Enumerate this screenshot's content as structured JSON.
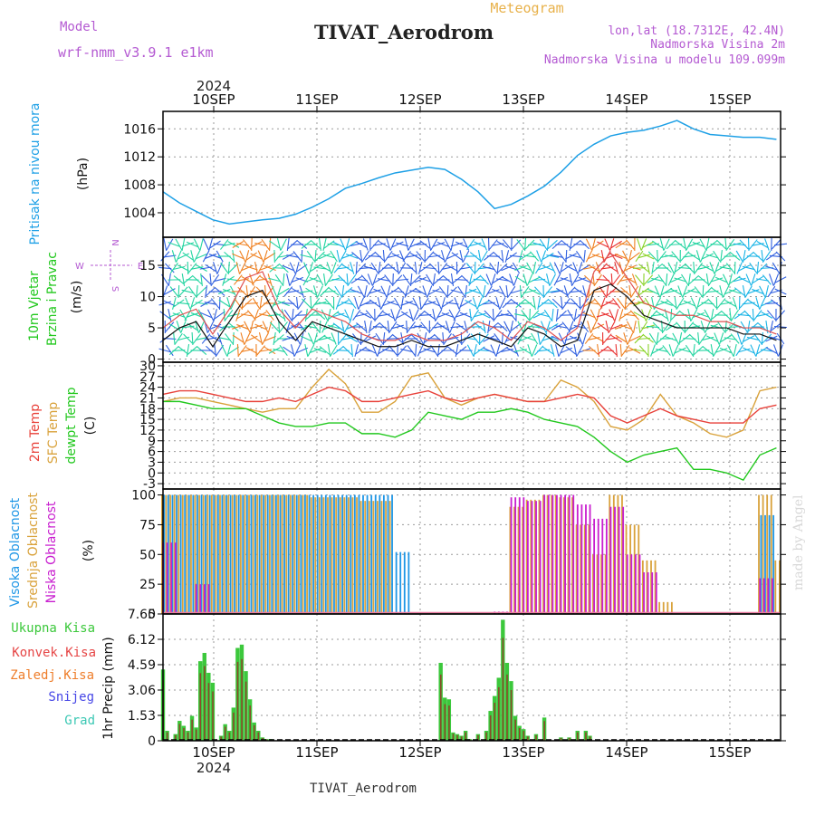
{
  "header": {
    "model_label": "Model",
    "model_name": "wrf-nmm_v3.9.1 e1km",
    "title": "TIVAT_Aerodrom",
    "subtitle": "Meteogram",
    "location_line": "lon,lat (18.7312E, 42.4N)",
    "elevation_line": "Nadmorska Visina 2m",
    "model_elevation_line": "Nadmorska Visina u modelu 109.099m",
    "footer_title": "TIVAT_Aerodrom",
    "watermark": "made by Angel"
  },
  "colors": {
    "pressure": "#1ea0e6",
    "temp2m": "#e8413a",
    "sfc_temp": "#d9a23b",
    "dewpoint": "#22c81e",
    "high_cloud": "#1e96e6",
    "mid_cloud": "#d9a23b",
    "low_cloud": "#c81ecf",
    "total_precip": "#3cc83c",
    "conv_precip": "#e64646",
    "strat_precip": "#ee7d2a",
    "snow": "#4646e6",
    "graupel": "#3cc8b4",
    "wind_label": "#22c81e",
    "compass": "#b45ad2"
  },
  "time_axis": {
    "year": "2024",
    "days": [
      "10SEP",
      "11SEP",
      "12SEP",
      "13SEP",
      "14SEP",
      "15SEP"
    ]
  },
  "chart_data": [
    {
      "type": "line",
      "id": "pressure",
      "ylabel_lines": [
        "Pritisak na nivou mora",
        "(hPa)"
      ],
      "ylim": [
        1000.5,
        1018.5
      ],
      "yticks": [
        1004,
        1008,
        1012,
        1016
      ],
      "grid": true,
      "x_hours": [
        0,
        4,
        8,
        12,
        16,
        20,
        24,
        28,
        32,
        36,
        40,
        44,
        48,
        52,
        56,
        60,
        64,
        68,
        72,
        76,
        80,
        84,
        88,
        92,
        96,
        100,
        104,
        108,
        112,
        116,
        120,
        124,
        128,
        132,
        136,
        140,
        144,
        148
      ],
      "series": [
        {
          "values": [
            1007.0,
            1005.4,
            1004.2,
            1003.0,
            1002.4,
            1002.7,
            1003.0,
            1003.2,
            1003.8,
            1004.8,
            1006.0,
            1007.5,
            1008.2,
            1009.0,
            1009.7,
            1010.1,
            1010.5,
            1010.2,
            1008.8,
            1007.0,
            1004.6,
            1005.2,
            1006.4,
            1007.8,
            1009.8,
            1012.2,
            1013.8,
            1015.0,
            1015.5,
            1015.8,
            1016.4,
            1017.2,
            1016.0,
            1015.2,
            1015.0,
            1014.8,
            1014.8,
            1014.5
          ]
        }
      ]
    },
    {
      "type": "line",
      "id": "wind",
      "ylabel_lines": [
        "10m Vjetar",
        "Brzina i Pravac",
        "(m/s)"
      ],
      "compass": {
        "north": "N",
        "south": "S",
        "west": "W",
        "east": "E"
      },
      "ylim": [
        -0.5,
        19.5
      ],
      "yticks": [
        0,
        5,
        10,
        15
      ],
      "grid": true,
      "x_hours": [
        0,
        4,
        8,
        12,
        16,
        20,
        24,
        28,
        32,
        36,
        40,
        44,
        48,
        52,
        56,
        60,
        64,
        68,
        72,
        76,
        80,
        84,
        88,
        92,
        96,
        100,
        104,
        108,
        112,
        116,
        120,
        124,
        128,
        132,
        136,
        140,
        144,
        148
      ],
      "series": [
        {
          "name": "speed",
          "values": [
            3,
            5,
            6,
            2,
            6,
            10,
            11,
            6,
            3,
            6,
            5,
            4,
            3,
            2,
            2,
            3,
            2,
            2,
            3,
            4,
            3,
            2,
            5,
            4,
            2,
            3,
            11,
            12,
            10,
            7,
            6,
            5,
            5,
            5,
            5,
            4,
            4,
            3
          ]
        },
        {
          "name": "gust",
          "values": [
            5,
            7,
            8,
            4,
            8,
            13,
            14,
            8,
            5,
            8,
            7,
            6,
            4,
            3,
            3,
            4,
            3,
            3,
            4,
            6,
            5,
            3,
            6,
            5,
            3,
            5,
            14,
            17,
            13,
            9,
            8,
            7,
            7,
            6,
            6,
            5,
            5,
            4
          ]
        }
      ]
    },
    {
      "type": "line",
      "id": "temperature",
      "ylabel_lines": [
        "2m Temp",
        "SFC Temp",
        "dewpt Temp",
        "(C)"
      ],
      "ylim": [
        -4.5,
        31
      ],
      "yticks": [
        -3,
        0,
        3,
        6,
        9,
        12,
        15,
        18,
        21,
        24,
        27,
        30
      ],
      "grid": true,
      "x_hours": [
        0,
        4,
        8,
        12,
        16,
        20,
        24,
        28,
        32,
        36,
        40,
        44,
        48,
        52,
        56,
        60,
        64,
        68,
        72,
        76,
        80,
        84,
        88,
        92,
        96,
        100,
        104,
        108,
        112,
        116,
        120,
        124,
        128,
        132,
        136,
        140,
        144,
        148
      ],
      "series": [
        {
          "name": "2m Temp",
          "values": [
            22,
            23,
            23,
            22,
            21,
            20,
            20,
            21,
            20,
            22,
            24,
            23,
            20,
            20,
            21,
            22,
            23,
            21,
            20,
            21,
            22,
            21,
            20,
            20,
            21,
            22,
            21,
            16,
            14,
            16,
            18,
            16,
            15,
            14,
            14,
            14,
            18,
            19
          ]
        },
        {
          "name": "SFC Temp",
          "values": [
            20,
            21,
            21,
            20,
            19,
            18,
            17,
            18,
            18,
            24,
            29,
            25,
            17,
            17,
            20,
            27,
            28,
            21,
            19,
            21,
            22,
            21,
            20,
            20,
            26,
            24,
            20,
            13,
            12,
            15,
            22,
            16,
            14,
            11,
            10,
            12,
            23,
            24
          ]
        },
        {
          "name": "dewpt Temp",
          "values": [
            20,
            20,
            19,
            18,
            18,
            18,
            16,
            14,
            13,
            13,
            14,
            14,
            11,
            11,
            10,
            12,
            17,
            16,
            15,
            17,
            17,
            18,
            17,
            15,
            14,
            13,
            10,
            6,
            3,
            5,
            6,
            7,
            1,
            1,
            0,
            -2,
            5,
            7
          ]
        }
      ]
    },
    {
      "type": "bar",
      "id": "cloud_cover",
      "ylabel_lines": [
        "Visoka Oblacnost",
        "Srednja Oblacnost",
        "Niska Oblacnost",
        "(%)"
      ],
      "ylim": [
        0,
        105
      ],
      "yticks": [
        0,
        25,
        50,
        75,
        100
      ],
      "grid": true,
      "x_hours": [
        0,
        4,
        8,
        12,
        16,
        20,
        24,
        28,
        32,
        36,
        40,
        44,
        48,
        52,
        56,
        60,
        64,
        68,
        72,
        76,
        80,
        84,
        88,
        92,
        96,
        100,
        104,
        108,
        112,
        116,
        120,
        124,
        128,
        132,
        136,
        140,
        144,
        148
      ],
      "series": [
        {
          "name": "Visoka Oblacnost",
          "values": [
            100,
            100,
            100,
            100,
            100,
            100,
            100,
            100,
            100,
            100,
            100,
            100,
            100,
            100,
            52,
            0,
            0,
            0,
            0,
            0,
            0,
            0,
            0,
            0,
            0,
            0,
            0,
            0,
            0,
            0,
            0,
            0,
            0,
            0,
            0,
            0,
            83,
            0
          ]
        },
        {
          "name": "Srednja Oblacnost",
          "values": [
            100,
            100,
            100,
            100,
            100,
            100,
            100,
            100,
            100,
            98,
            98,
            98,
            95,
            95,
            0,
            0,
            0,
            0,
            0,
            0,
            0,
            90,
            96,
            100,
            98,
            75,
            50,
            100,
            75,
            45,
            10,
            0,
            0,
            0,
            0,
            0,
            100,
            45
          ]
        },
        {
          "name": "Niska Oblacnost",
          "values": [
            60,
            0,
            25,
            0,
            0,
            0,
            0,
            0,
            0,
            0,
            0,
            0,
            0,
            0,
            0,
            0,
            0,
            0,
            0,
            0,
            2,
            98,
            95,
            100,
            100,
            92,
            80,
            90,
            50,
            35,
            0,
            0,
            0,
            0,
            0,
            0,
            30,
            0
          ]
        }
      ]
    },
    {
      "type": "bar",
      "id": "precipitation",
      "ylabel_lines": [
        "1hr Precip (mm)"
      ],
      "legend": [
        "Ukupna Kisa",
        "Konvek.Kisa",
        "Zaledj.Kisa",
        "Snijeg",
        "Grad"
      ],
      "ylim": [
        0,
        7.65
      ],
      "yticks": [
        0,
        1.53,
        3.06,
        4.59,
        6.12,
        7.65
      ],
      "grid": true,
      "x_hours": [
        0,
        1,
        3,
        4,
        5,
        6,
        7,
        8,
        9,
        10,
        11,
        12,
        14,
        15,
        16,
        17,
        18,
        19,
        20,
        21,
        22,
        23,
        24,
        25,
        26,
        67,
        68,
        69,
        70,
        71,
        72,
        73,
        74,
        76,
        78,
        79,
        80,
        81,
        82,
        83,
        84,
        85,
        86,
        87,
        88,
        90,
        92,
        96,
        98,
        100,
        102,
        103
      ],
      "series": [
        {
          "name": "Ukupna Kisa",
          "values": [
            4.3,
            0.6,
            0.4,
            1.2,
            0.9,
            0.6,
            1.5,
            0.8,
            4.8,
            5.3,
            4.1,
            3.5,
            0.3,
            1.0,
            0.6,
            2.0,
            5.6,
            5.8,
            4.2,
            2.5,
            1.1,
            0.6,
            0.2,
            0.1,
            0.1,
            4.7,
            2.6,
            2.5,
            0.5,
            0.4,
            0.3,
            0.6,
            0.1,
            0.4,
            0.6,
            1.8,
            2.7,
            3.8,
            7.3,
            4.7,
            3.6,
            1.5,
            0.9,
            0.7,
            0.3,
            0.4,
            1.4,
            0.2,
            0.2,
            0.6,
            0.6,
            0.3
          ]
        }
      ]
    }
  ]
}
